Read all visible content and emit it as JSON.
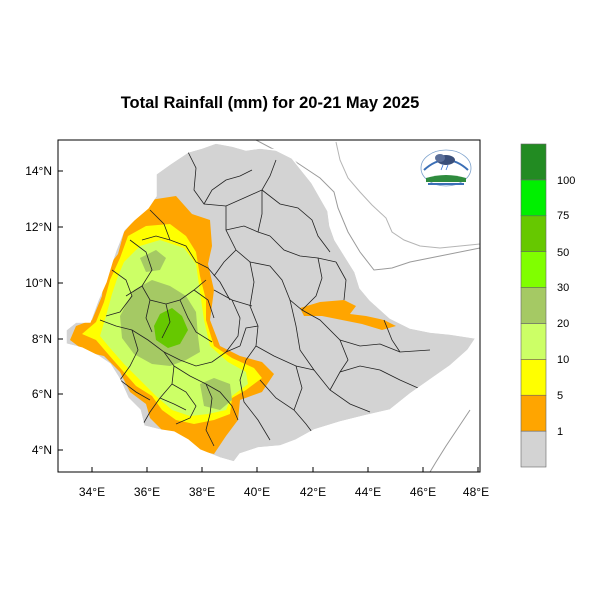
{
  "title": "Total Rainfall (mm) for 20-21 May 2025",
  "map": {
    "lon_range": [
      33,
      48.2
    ],
    "lat_range": [
      3.2,
      15.0
    ],
    "x_ticks": [
      "34°E",
      "36°E",
      "38°E",
      "40°E",
      "42°E",
      "44°E",
      "46°E",
      "48°E"
    ],
    "y_ticks": [
      "14°N",
      "12°N",
      "10°N",
      "8°N",
      "6°N",
      "4°N"
    ]
  },
  "legend": {
    "bins": [
      {
        "color": "#d3d3d3",
        "label": "1"
      },
      {
        "color": "#ffa500",
        "label": "5"
      },
      {
        "color": "#ffff00",
        "label": "10"
      },
      {
        "color": "#ccff66",
        "label": "20"
      },
      {
        "color": "#a5c964",
        "label": "30"
      },
      {
        "color": "#80ff00",
        "label": "50"
      },
      {
        "color": "#66c800",
        "label": "75"
      },
      {
        "color": "#00f000",
        "label": "100"
      },
      {
        "color": "#228b22",
        "label": ""
      }
    ]
  },
  "colors": {
    "land": "#d3d3d3",
    "orange": "#ffa500",
    "yellow": "#ffff00",
    "lightgreen": "#ccff66",
    "olive": "#a5c964",
    "green": "#66c800"
  },
  "logo": {
    "icon": "meteorology-agency-logo"
  }
}
